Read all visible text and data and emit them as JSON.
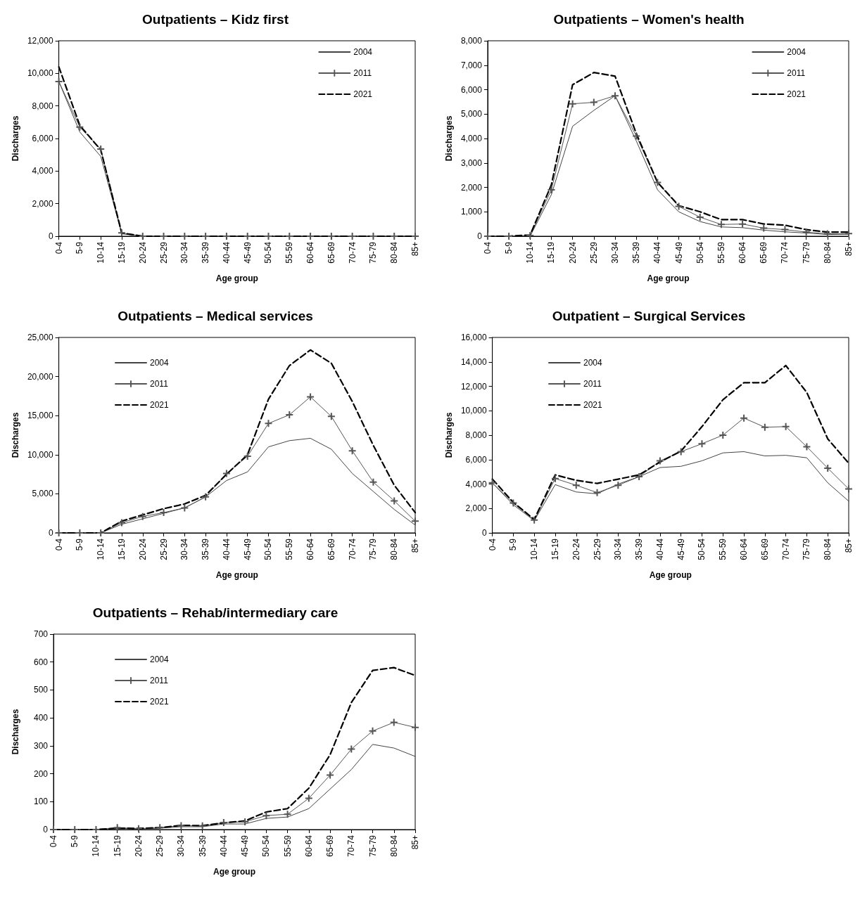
{
  "chart_data": [
    {
      "type": "line",
      "title": "Outpatients – Kidz first",
      "xlabel": "Age group",
      "ylabel": "Discharges",
      "categories": [
        "0-4",
        "5-9",
        "10-14",
        "15-19",
        "20-24",
        "25-29",
        "30-34",
        "35-39",
        "40-44",
        "45-49",
        "50-54",
        "55-59",
        "60-64",
        "65-69",
        "70-74",
        "75-79",
        "80-84",
        "85+"
      ],
      "ylim": [
        0,
        12000
      ],
      "yticks": [
        0,
        {
          "value": 2000,
          "label": "2,000"
        },
        {
          "value": 4000,
          "label": "4,000"
        },
        {
          "value": 6000,
          "label": "6,000"
        },
        {
          "value": 8000,
          "label": "8,000"
        },
        {
          "value": 10000,
          "label": "10,000"
        },
        {
          "value": 12000,
          "label": "12,000"
        }
      ],
      "grid": false,
      "legend": "top right",
      "series": [
        {
          "name": "2004",
          "color": "#444444",
          "values": [
            9500,
            6400,
            4900,
            150,
            0,
            0,
            0,
            0,
            0,
            0,
            0,
            0,
            0,
            0,
            0,
            0,
            0,
            0
          ]
        },
        {
          "name": "2011",
          "color": "#555555",
          "marker": "cross",
          "values": [
            9500,
            6700,
            5350,
            200,
            0,
            0,
            0,
            0,
            0,
            0,
            0,
            0,
            0,
            0,
            0,
            0,
            0,
            0
          ]
        },
        {
          "name": "2021",
          "color": "#000000",
          "line_style": "dashed",
          "values": [
            10400,
            6800,
            5300,
            200,
            0,
            0,
            0,
            0,
            0,
            0,
            0,
            0,
            0,
            0,
            0,
            0,
            0,
            0
          ]
        }
      ]
    },
    {
      "type": "line",
      "title": "Outpatients – Women's health",
      "xlabel": "Age group",
      "ylabel": "Discharges",
      "categories": [
        "0-4",
        "5-9",
        "10-14",
        "15-19",
        "20-24",
        "25-29",
        "30-34",
        "35-39",
        "40-44",
        "45-49",
        "50-54",
        "55-59",
        "60-64",
        "65-69",
        "70-74",
        "75-79",
        "80-84",
        "85+"
      ],
      "ylim": [
        0,
        8000
      ],
      "yticks": [
        0,
        {
          "value": 1000,
          "label": "1,000"
        },
        {
          "value": 2000,
          "label": "2,000"
        },
        {
          "value": 3000,
          "label": "3,000"
        },
        {
          "value": 4000,
          "label": "4,000"
        },
        {
          "value": 5000,
          "label": "5,000"
        },
        {
          "value": 6000,
          "label": "6,000"
        },
        {
          "value": 7000,
          "label": "7,000"
        },
        {
          "value": 8000,
          "label": "8,000"
        }
      ],
      "grid": false,
      "legend": "top right",
      "series": [
        {
          "name": "2004",
          "color": "#444444",
          "values": [
            0,
            0,
            0,
            1700,
            4500,
            5150,
            5750,
            3900,
            1900,
            1000,
            600,
            380,
            350,
            250,
            180,
            130,
            70,
            80
          ]
        },
        {
          "name": "2011",
          "color": "#555555",
          "marker": "cross",
          "values": [
            0,
            0,
            30,
            1900,
            5420,
            5480,
            5750,
            4100,
            2200,
            1220,
            780,
            480,
            500,
            330,
            270,
            170,
            100,
            110
          ]
        },
        {
          "name": "2021",
          "color": "#000000",
          "line_style": "dashed",
          "values": [
            0,
            0,
            50,
            2100,
            6200,
            6700,
            6550,
            4200,
            2200,
            1250,
            1000,
            680,
            680,
            500,
            450,
            270,
            170,
            170
          ]
        }
      ]
    },
    {
      "type": "line",
      "title": "Outpatients – Medical services",
      "xlabel": "Age group",
      "ylabel": "Discharges",
      "categories": [
        "0-4",
        "5-9",
        "10-14",
        "15-19",
        "20-24",
        "25-29",
        "30-34",
        "35-39",
        "40-44",
        "45-49",
        "50-54",
        "55-59",
        "60-64",
        "65-69",
        "70-74",
        "75-79",
        "80-84",
        "85+"
      ],
      "ylim": [
        0,
        25000
      ],
      "yticks": [
        0,
        {
          "value": 5000,
          "label": "5,000"
        },
        {
          "value": 10000,
          "label": "10,000"
        },
        {
          "value": 15000,
          "label": "15,000"
        },
        {
          "value": 20000,
          "label": "20,000"
        },
        {
          "value": 25000,
          "label": "25,000"
        }
      ],
      "grid": false,
      "legend": "top left",
      "series": [
        {
          "name": "2004",
          "color": "#444444",
          "values": [
            0,
            0,
            0,
            1100,
            1800,
            2500,
            3200,
            4600,
            6700,
            7800,
            11000,
            11800,
            12100,
            10700,
            7600,
            5300,
            3000,
            1000
          ]
        },
        {
          "name": "2011",
          "color": "#555555",
          "marker": "cross",
          "values": [
            0,
            0,
            0,
            1300,
            2100,
            2600,
            3200,
            4600,
            7600,
            9800,
            14000,
            15100,
            17400,
            14900,
            10500,
            6500,
            4100,
            1500
          ]
        },
        {
          "name": "2021",
          "color": "#000000",
          "line_style": "dashed",
          "values": [
            0,
            0,
            0,
            1500,
            2300,
            3100,
            3700,
            4800,
            7500,
            10000,
            17100,
            21400,
            23400,
            21700,
            16800,
            11200,
            6100,
            2600
          ]
        }
      ]
    },
    {
      "type": "line",
      "title": "Outpatient – Surgical Services",
      "xlabel": "Age group",
      "ylabel": "Discharges",
      "categories": [
        "0-4",
        "5-9",
        "10-14",
        "15-19",
        "20-24",
        "25-29",
        "30-34",
        "35-39",
        "40-44",
        "45-49",
        "50-54",
        "55-59",
        "60-64",
        "65-69",
        "70-74",
        "75-79",
        "80-84",
        "85+"
      ],
      "ylim": [
        0,
        16000
      ],
      "yticks": [
        0,
        {
          "value": 2000,
          "label": "2,000"
        },
        {
          "value": 4000,
          "label": "4,000"
        },
        {
          "value": 6000,
          "label": "6,000"
        },
        {
          "value": 8000,
          "label": "8,000"
        },
        {
          "value": 10000,
          "label": "10,000"
        },
        {
          "value": 12000,
          "label": "12,000"
        },
        {
          "value": 14000,
          "label": "14,000"
        },
        {
          "value": 16000,
          "label": "16,000"
        }
      ],
      "grid": false,
      "legend": "top left",
      "series": [
        {
          "name": "2004",
          "color": "#444444",
          "values": [
            4100,
            2300,
            1000,
            3950,
            3350,
            3200,
            4000,
            4600,
            5350,
            5450,
            5900,
            6550,
            6650,
            6300,
            6350,
            6150,
            4100,
            2600
          ]
        },
        {
          "name": "2011",
          "color": "#555555",
          "marker": "cross",
          "values": [
            4100,
            2450,
            1050,
            4450,
            3900,
            3300,
            3900,
            4600,
            5900,
            6650,
            7300,
            8000,
            9400,
            8650,
            8700,
            7050,
            5300,
            3600
          ]
        },
        {
          "name": "2021",
          "color": "#000000",
          "line_style": "dashed",
          "values": [
            4400,
            2500,
            1100,
            4750,
            4300,
            4050,
            4400,
            4750,
            5800,
            6700,
            8700,
            10900,
            12300,
            12300,
            13700,
            11500,
            7700,
            5700
          ]
        }
      ]
    },
    {
      "type": "line",
      "title": "Outpatients – Rehab/intermediary care",
      "xlabel": "Age group",
      "ylabel": "Discharges",
      "categories": [
        "0-4",
        "5-9",
        "10-14",
        "15-19",
        "20-24",
        "25-29",
        "30-34",
        "35-39",
        "40-44",
        "45-49",
        "50-54",
        "55-59",
        "60-64",
        "65-69",
        "70-74",
        "75-79",
        "80-84",
        "85+"
      ],
      "ylim": [
        0,
        700
      ],
      "yticks": [
        0,
        100,
        200,
        300,
        400,
        500,
        600,
        700
      ],
      "grid": false,
      "legend": "top left",
      "series": [
        {
          "name": "2004",
          "color": "#444444",
          "values": [
            0,
            0,
            0,
            5,
            2,
            5,
            10,
            10,
            20,
            20,
            40,
            45,
            75,
            145,
            215,
            305,
            292,
            262
          ]
        },
        {
          "name": "2011",
          "color": "#555555",
          "marker": "cross",
          "values": [
            0,
            0,
            0,
            7,
            3,
            7,
            14,
            13,
            25,
            28,
            50,
            55,
            112,
            195,
            288,
            353,
            384,
            366
          ]
        },
        {
          "name": "2021",
          "color": "#000000",
          "line_style": "dashed",
          "values": [
            0,
            0,
            0,
            5,
            4,
            7,
            15,
            14,
            24,
            31,
            63,
            75,
            148,
            268,
            455,
            570,
            580,
            552
          ]
        }
      ]
    }
  ]
}
